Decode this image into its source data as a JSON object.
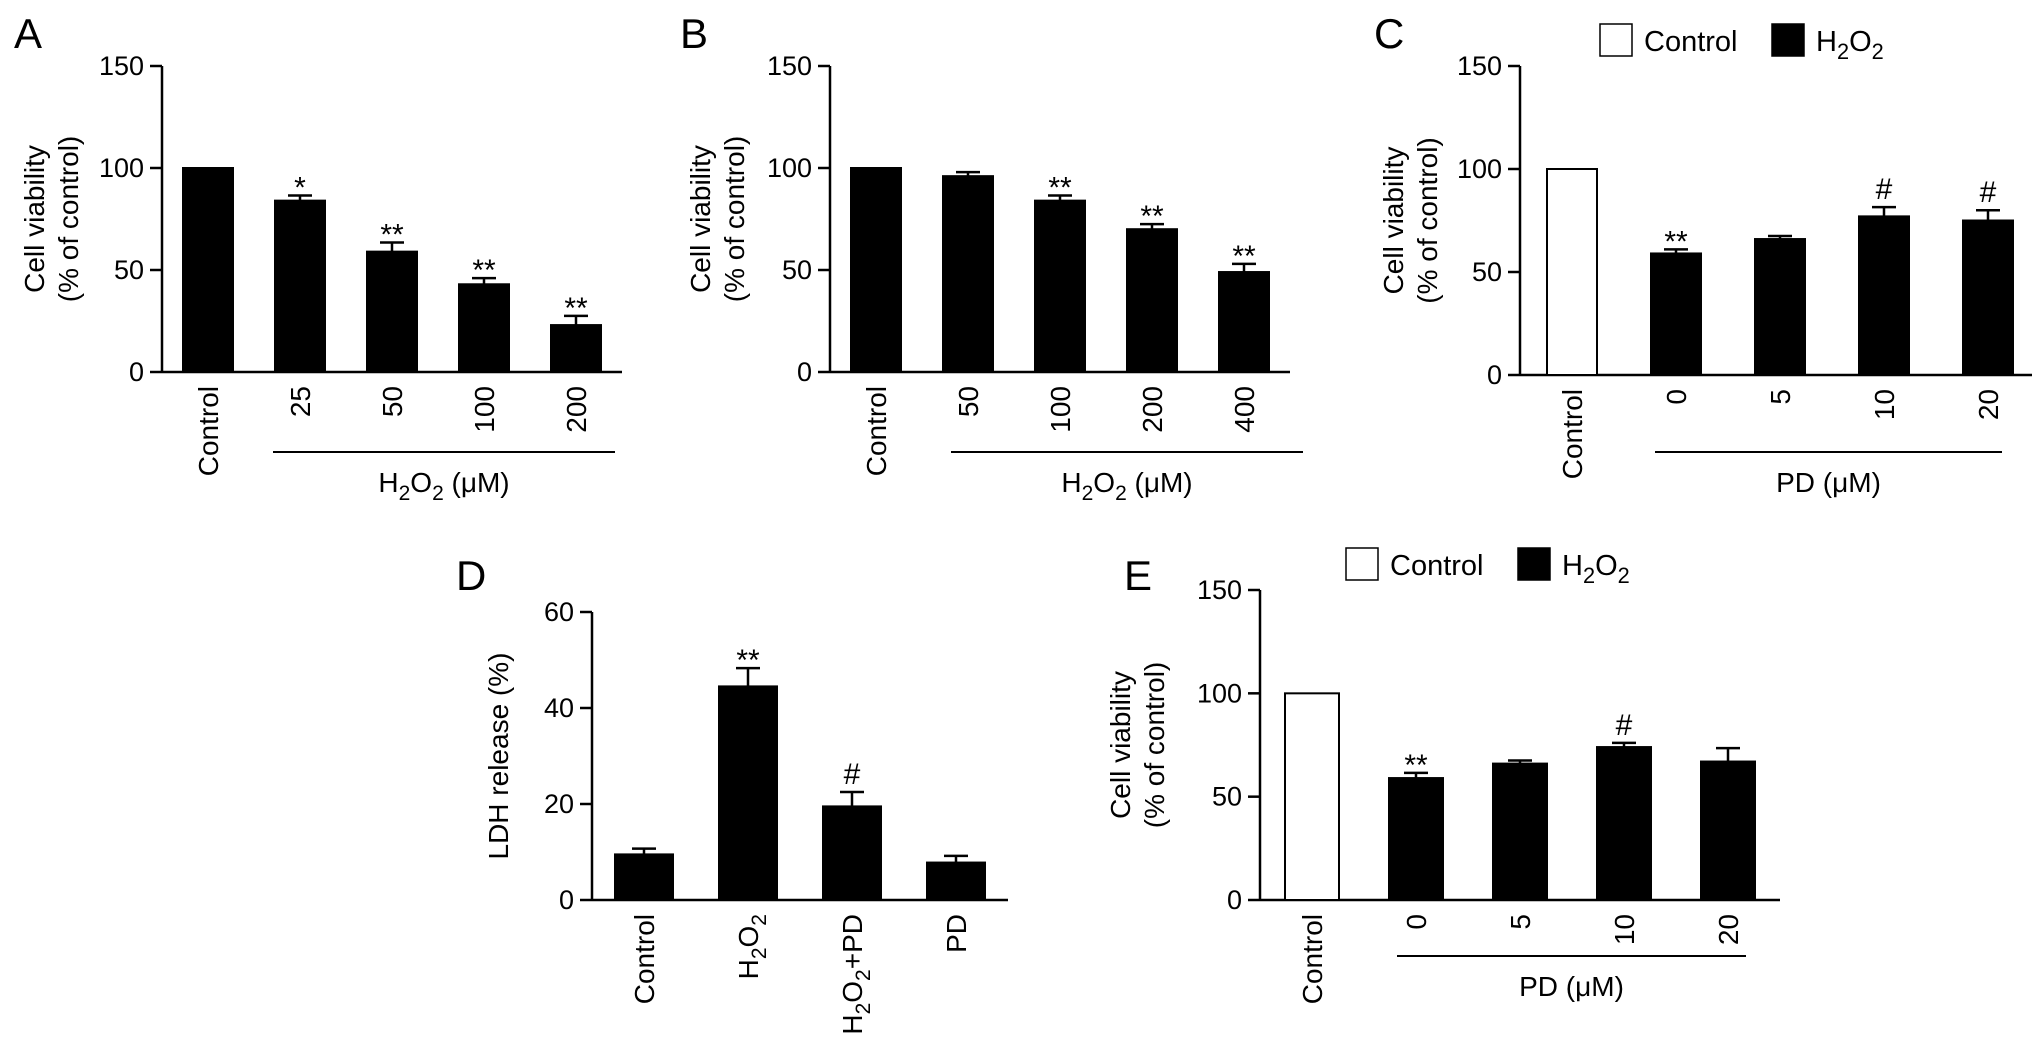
{
  "chart_data": [
    {
      "panel": "A",
      "type": "bar",
      "categories": [
        "Control",
        "25",
        "50",
        "100",
        "200"
      ],
      "values": [
        100,
        84,
        59,
        43,
        23
      ],
      "errors": [
        0,
        2.5,
        4.5,
        3,
        4.5
      ],
      "significance": [
        "",
        "*",
        "**",
        "**",
        "**"
      ],
      "fills": [
        "#000000",
        "#000000",
        "#000000",
        "#000000",
        "#000000"
      ],
      "ylabel": [
        "Cell viability",
        "(% of control)"
      ],
      "yticks": [
        0,
        50,
        100,
        150
      ],
      "ylim": [
        0,
        150
      ],
      "group_label": {
        "main": "H",
        "sub1": "2",
        "mid": "O",
        "sub2": "2",
        "tail": " (μM)"
      },
      "legend": null
    },
    {
      "panel": "B",
      "type": "bar",
      "categories": [
        "Control",
        "50",
        "100",
        "200",
        "400"
      ],
      "values": [
        100,
        96,
        84,
        70,
        49
      ],
      "errors": [
        0,
        2,
        2.5,
        2.5,
        4
      ],
      "significance": [
        "",
        "",
        "**",
        "**",
        "**"
      ],
      "fills": [
        "#000000",
        "#000000",
        "#000000",
        "#000000",
        "#000000"
      ],
      "ylabel": [
        "Cell viability",
        "(% of control)"
      ],
      "yticks": [
        0,
        50,
        100,
        150
      ],
      "ylim": [
        0,
        150
      ],
      "group_label": {
        "main": "H",
        "sub1": "2",
        "mid": "O",
        "sub2": "2",
        "tail": " (μM)"
      },
      "legend": null
    },
    {
      "panel": "C",
      "type": "bar",
      "categories": [
        "Control",
        "0",
        "5",
        "10",
        "20"
      ],
      "values": [
        100,
        59,
        66,
        77,
        75
      ],
      "errors": [
        0,
        2,
        1.5,
        4.5,
        5
      ],
      "significance": [
        "",
        "**",
        "",
        "#",
        "#"
      ],
      "fills": [
        "#ffffff",
        "#000000",
        "#000000",
        "#000000",
        "#000000"
      ],
      "ylabel": [
        "Cell viability",
        "(% of control)"
      ],
      "yticks": [
        0,
        50,
        100,
        150
      ],
      "ylim": [
        0,
        150
      ],
      "group_label": {
        "main": "PD (μM)"
      },
      "legend": {
        "control": "Control",
        "treat": {
          "main": "H",
          "sub1": "2",
          "mid": "O",
          "sub2": "2"
        }
      }
    },
    {
      "panel": "D",
      "type": "bar",
      "categories": [
        "Control",
        "H2O2",
        "H2O2+PD",
        "PD"
      ],
      "values": [
        9.5,
        44.5,
        19.5,
        7.8
      ],
      "errors": [
        1.2,
        3.8,
        3,
        1.4
      ],
      "significance": [
        "",
        "**",
        "#",
        ""
      ],
      "fills": [
        "#000000",
        "#000000",
        "#000000",
        "#000000"
      ],
      "ylabel": [
        "LDH release (%)"
      ],
      "yticks": [
        0,
        20,
        40,
        60
      ],
      "ylim": [
        0,
        60
      ],
      "group_label": null,
      "legend": null
    },
    {
      "panel": "E",
      "type": "bar",
      "categories": [
        "Control",
        "0",
        "5",
        "10",
        "20"
      ],
      "values": [
        100,
        59,
        66,
        74,
        67
      ],
      "errors": [
        0,
        2.5,
        1.5,
        2,
        6.5
      ],
      "significance": [
        "",
        "**",
        "",
        "#",
        ""
      ],
      "fills": [
        "#ffffff",
        "#000000",
        "#000000",
        "#000000",
        "#000000"
      ],
      "ylabel": [
        "Cell viability",
        "(% of control)"
      ],
      "yticks": [
        0,
        50,
        100,
        150
      ],
      "ylim": [
        0,
        150
      ],
      "group_label": {
        "main": "PD (μM)"
      },
      "legend": {
        "control": "Control",
        "treat": {
          "main": "H",
          "sub1": "2",
          "mid": "O",
          "sub2": "2"
        }
      }
    }
  ]
}
